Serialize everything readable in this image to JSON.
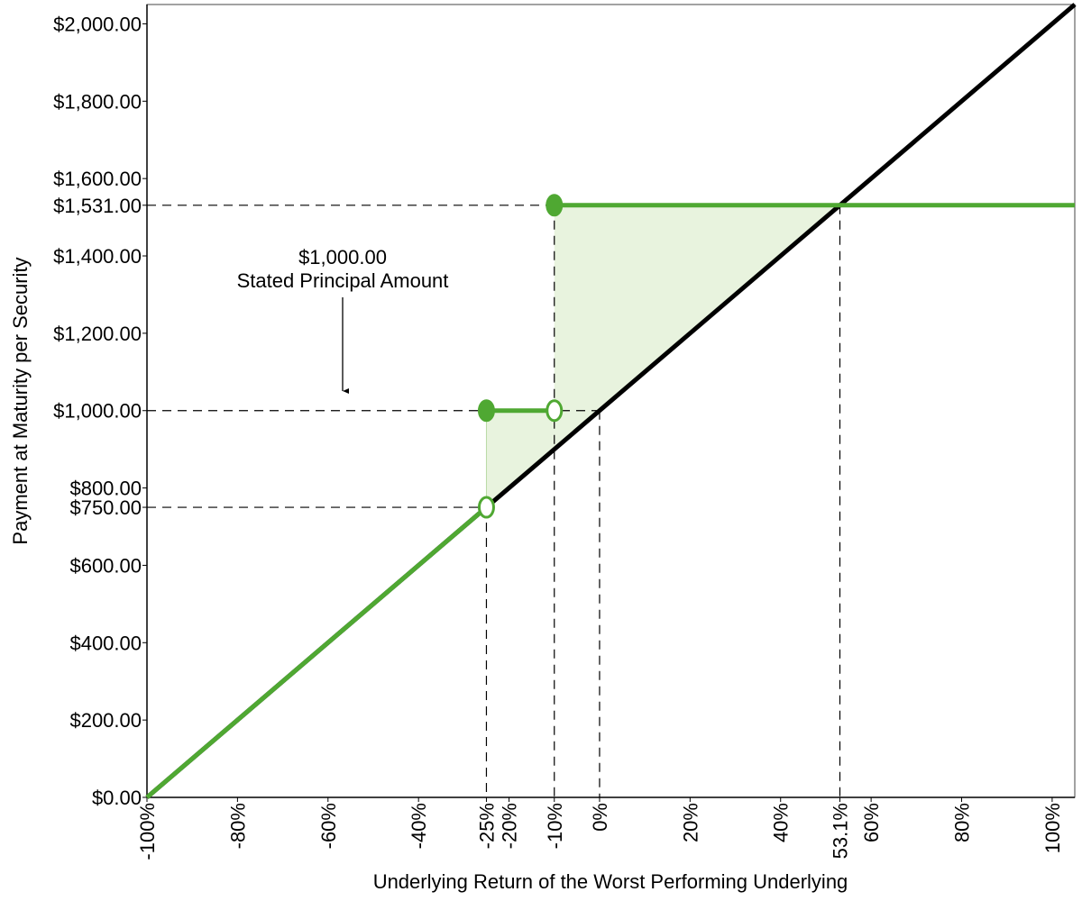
{
  "chart_data": {
    "type": "line",
    "x_label": "Underlying Return of the Worst Performing Underlying",
    "y_label": "Payment at Maturity per Security",
    "annotation": [
      "$1,000.00",
      "Stated Principal Amount"
    ],
    "xlim": [
      -100,
      105
    ],
    "ylim": [
      0,
      2050
    ],
    "xticks": [
      {
        "value": -100,
        "label": "-100%"
      },
      {
        "value": -80,
        "label": "-80%"
      },
      {
        "value": -60,
        "label": "-60%"
      },
      {
        "value": -40,
        "label": "-40%"
      },
      {
        "value": -25,
        "label": "-25%"
      },
      {
        "value": -20,
        "label": "-20%"
      },
      {
        "value": -10,
        "label": "-10%"
      },
      {
        "value": 0,
        "label": "0%"
      },
      {
        "value": 20,
        "label": "20%"
      },
      {
        "value": 40,
        "label": "40%"
      },
      {
        "value": 53.1,
        "label": "53.1%"
      },
      {
        "value": 60,
        "label": "60%"
      },
      {
        "value": 80,
        "label": "80%"
      },
      {
        "value": 100,
        "label": "100%"
      }
    ],
    "yticks": [
      {
        "value": 0,
        "label": "$0.00"
      },
      {
        "value": 200,
        "label": "$200.00"
      },
      {
        "value": 400,
        "label": "$400.00"
      },
      {
        "value": 600,
        "label": "$600.00"
      },
      {
        "value": 750,
        "label": "$750.00"
      },
      {
        "value": 800,
        "label": "$800.00"
      },
      {
        "value": 1000,
        "label": "$1,000.00"
      },
      {
        "value": 1200,
        "label": "$1,200.00"
      },
      {
        "value": 1400,
        "label": "$1,400.00"
      },
      {
        "value": 1531,
        "label": "$1,531.00"
      },
      {
        "value": 1600,
        "label": "$1,600.00"
      },
      {
        "value": 1800,
        "label": "$1,800.00"
      },
      {
        "value": 2000,
        "label": "$2,000.00"
      }
    ],
    "series": [
      {
        "color": "#000000",
        "x": [
          -100,
          105
        ],
        "values": [
          0,
          2050
        ]
      },
      {
        "color": "#4fa832",
        "x": [
          -100,
          -25,
          -25,
          -25,
          -10,
          -10,
          -10,
          105
        ],
        "values": [
          0,
          750,
          null,
          1000,
          1000,
          null,
          1531,
          1531
        ]
      }
    ],
    "points": [
      {
        "x": -25,
        "y": 1000,
        "filled": true
      },
      {
        "x": -25,
        "y": 750,
        "filled": false
      },
      {
        "x": -10,
        "y": 1000,
        "filled": false
      },
      {
        "x": -10,
        "y": 1531,
        "filled": true
      }
    ],
    "area_color": "#e8f3de",
    "hlines": [
      {
        "y": 1531,
        "to_x": -10
      },
      {
        "y": 1000,
        "to_x": 0
      },
      {
        "y": 750,
        "to_x": -25
      }
    ],
    "vlines": [
      {
        "x": -25,
        "to_y": 750
      },
      {
        "x": -10,
        "to_y": 1531
      },
      {
        "x": 0,
        "to_y": 1000
      },
      {
        "x": 53.1,
        "to_y": 1531
      }
    ]
  }
}
